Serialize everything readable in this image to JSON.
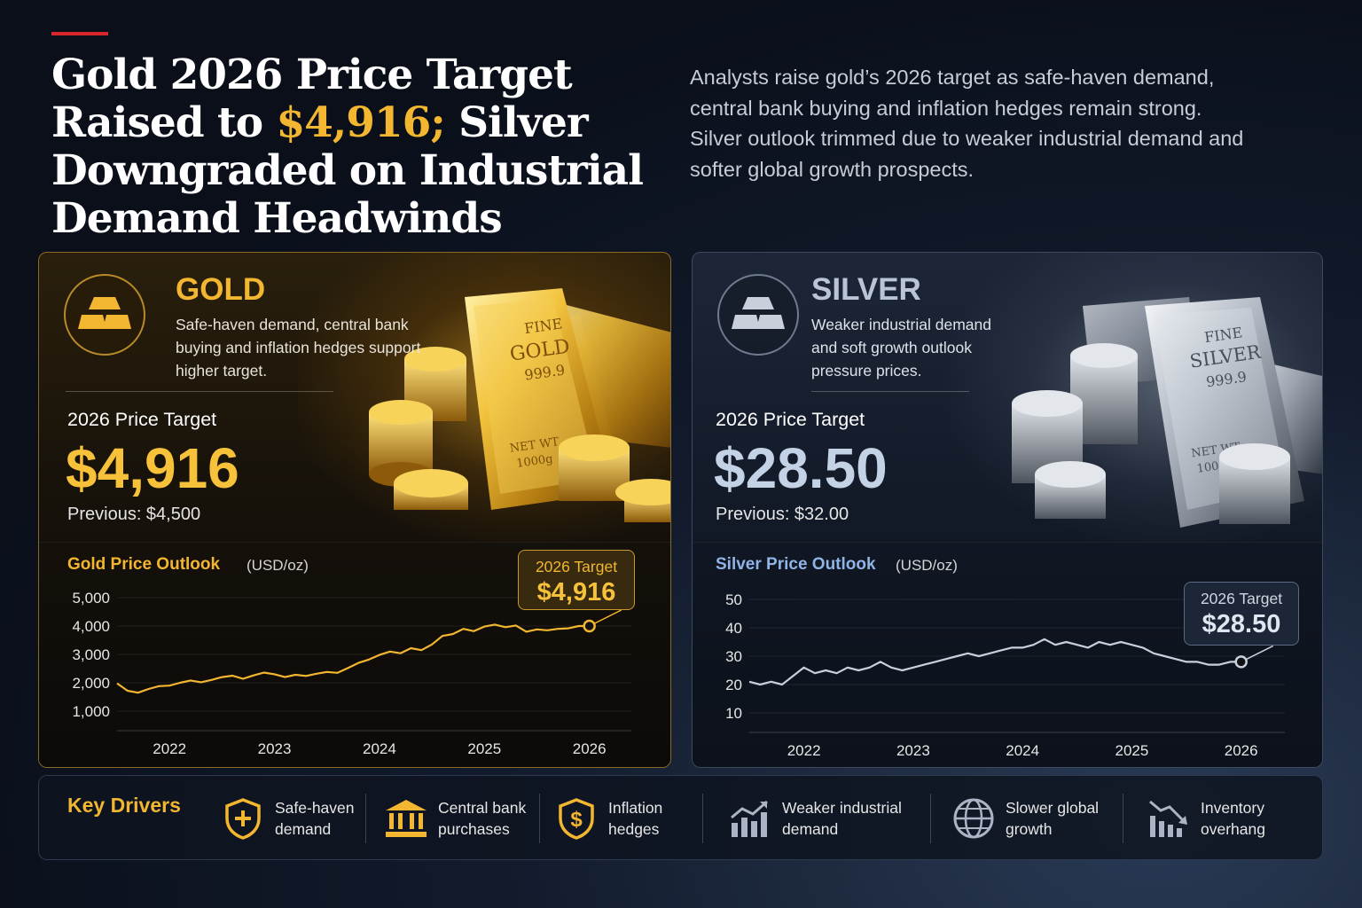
{
  "header": {
    "headline_before": "Gold 2026 Price Target Raised to ",
    "headline_highlight": "$4,916;",
    "headline_after": " Silver Downgraded on Industrial Demand Headwinds",
    "subhead": "Analysts raise gold’s 2026 target as safe-haven demand, central bank buying and inflation hedges remain strong. Silver outlook trimmed due to weaker industrial demand and softer global growth prospects."
  },
  "gold": {
    "name": "GOLD",
    "description": "Safe-haven demand, central bank buying and inflation hedges support higher target.",
    "target_label": "2026 Price Target",
    "target_value": "$4,916",
    "previous": "Previous: $4,500",
    "bar_text": [
      "FINE",
      "GOLD",
      "999.9",
      "NET WT",
      "1000g"
    ]
  },
  "silver": {
    "name": "SILVER",
    "description": "Weaker industrial demand and soft growth outlook pressure prices.",
    "target_label": "2026 Price Target",
    "target_value": "$28.50",
    "previous": "Previous: $32.00",
    "bar_text": [
      "FINE",
      "SILVER",
      "999.9",
      "NET WT",
      "1000g"
    ]
  },
  "chart_data": [
    {
      "type": "line",
      "title": "Gold Price Outlook",
      "ylabel": "(USD/oz)",
      "x_ticks": [
        "2022",
        "2023",
        "2024",
        "2025",
        "2026"
      ],
      "y_ticks": [
        "1,000",
        "2,000",
        "3,000",
        "4,000",
        "5,000"
      ],
      "ylim": [
        1000,
        5000
      ],
      "xlim": [
        2021.5,
        2026.4
      ],
      "color": "#f2b630",
      "series": [
        {
          "x": [
            2021.5,
            2021.6,
            2021.7,
            2021.8,
            2021.9,
            2022.0,
            2022.1,
            2022.2,
            2022.3,
            2022.4,
            2022.5,
            2022.6,
            2022.7,
            2022.8,
            2022.9,
            2023.0,
            2023.1,
            2023.2,
            2023.3,
            2023.4,
            2023.5,
            2023.6,
            2023.7,
            2023.8,
            2023.9,
            2024.0,
            2024.1,
            2024.2,
            2024.3,
            2024.4,
            2024.5,
            2024.6,
            2024.7,
            2024.8,
            2024.9,
            2025.0,
            2025.1,
            2025.2,
            2025.3,
            2025.4,
            2025.5,
            2025.6,
            2025.7,
            2025.8,
            2025.9,
            2026.0
          ],
          "y": [
            1980,
            1720,
            1650,
            1780,
            1880,
            1900,
            2000,
            2080,
            2020,
            2100,
            2200,
            2250,
            2140,
            2260,
            2360,
            2300,
            2200,
            2280,
            2240,
            2320,
            2380,
            2350,
            2520,
            2700,
            2820,
            2980,
            3100,
            3040,
            3220,
            3150,
            3350,
            3650,
            3720,
            3900,
            3820,
            3980,
            4050,
            3960,
            4020,
            3800,
            3880,
            3850,
            3900,
            3920,
            4000,
            4000
          ]
        }
      ],
      "annotation": {
        "label": "2026 Target",
        "value": "$4,916",
        "x": 2026.0,
        "y": 4000
      }
    },
    {
      "type": "line",
      "title": "Silver Price Outlook",
      "ylabel": "(USD/oz)",
      "x_ticks": [
        "2022",
        "2023",
        "2024",
        "2025",
        "2026"
      ],
      "y_ticks": [
        "10",
        "20",
        "30",
        "40",
        "50"
      ],
      "ylim": [
        10,
        50
      ],
      "xlim": [
        2021.5,
        2026.4
      ],
      "color": "#c9d0dc",
      "series": [
        {
          "x": [
            2021.5,
            2021.6,
            2021.7,
            2021.8,
            2021.9,
            2022.0,
            2022.1,
            2022.2,
            2022.3,
            2022.4,
            2022.5,
            2022.6,
            2022.7,
            2022.8,
            2022.9,
            2023.0,
            2023.1,
            2023.2,
            2023.3,
            2023.4,
            2023.5,
            2023.6,
            2023.7,
            2023.8,
            2023.9,
            2024.0,
            2024.1,
            2024.2,
            2024.3,
            2024.4,
            2024.5,
            2024.6,
            2024.7,
            2024.8,
            2024.9,
            2025.0,
            2025.1,
            2025.2,
            2025.3,
            2025.4,
            2025.5,
            2025.6,
            2025.7,
            2025.8,
            2025.9,
            2026.0
          ],
          "y": [
            21,
            20,
            21,
            20,
            23,
            26,
            24,
            25,
            24,
            26,
            25,
            26,
            28,
            26,
            25,
            26,
            27,
            28,
            29,
            30,
            31,
            30,
            31,
            32,
            33,
            33,
            34,
            36,
            34,
            35,
            34,
            33,
            35,
            34,
            35,
            34,
            33,
            31,
            30,
            29,
            28,
            28,
            27,
            27,
            28,
            28
          ]
        }
      ],
      "annotation": {
        "label": "2026 Target",
        "value": "$28.50",
        "x": 2026.0,
        "y": 28
      }
    }
  ],
  "drivers": {
    "title": "Key Drivers",
    "items": [
      {
        "label_line1": "Safe-haven",
        "label_line2": "demand",
        "icon": "shield-icon"
      },
      {
        "label_line1": "Central bank",
        "label_line2": "purchases",
        "icon": "bank-icon"
      },
      {
        "label_line1": "Inflation",
        "label_line2": "hedges",
        "icon": "dollar-shield-icon"
      },
      {
        "label_line1": "Weaker industrial",
        "label_line2": "demand",
        "icon": "factory-chart-icon"
      },
      {
        "label_line1": "Slower global",
        "label_line2": "growth",
        "icon": "globe-icon"
      },
      {
        "label_line1": "Inventory",
        "label_line2": "overhang",
        "icon": "down-trend-icon"
      }
    ]
  },
  "colors": {
    "gold_accent": "#f2b630",
    "silver_accent": "#8fb4e6",
    "headline_red": "#d8262b"
  }
}
